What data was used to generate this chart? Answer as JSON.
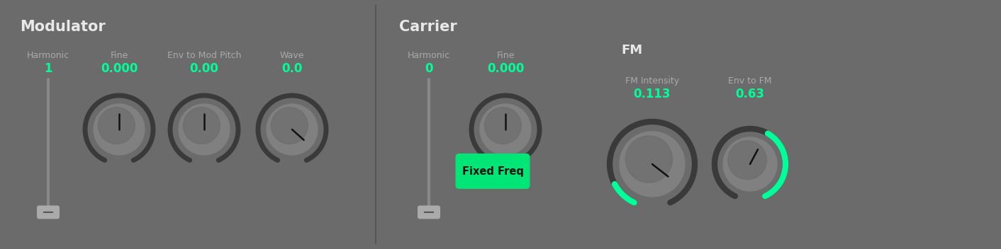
{
  "bg_color": "#6b6b6b",
  "text_color_white": "#e8e8e8",
  "text_color_green": "#00ff99",
  "text_color_label": "#aaaaaa",
  "knob_ring_color": "#3a3a3a",
  "knob_face_dark": "#808080",
  "knob_face_light": "#686868",
  "divider_color": "#555555",
  "green_button_color": "#00e676",
  "green_button_text": "#111111",
  "slider_track_color": "#888888",
  "slider_thumb_color": "#aaaaaa",
  "needle_color": "#111111",
  "green_arc_color": "#00ff99",
  "modulator_title": "Modulator",
  "carrier_title": "Carrier",
  "fm_title": "FM",
  "mod_harmonic_label": "Harmonic",
  "mod_harmonic_value": "1",
  "mod_fine_label": "Fine",
  "mod_fine_value": "0.000",
  "mod_env_label": "Env to Mod Pitch",
  "mod_env_value": "0.00",
  "mod_wave_label": "Wave",
  "mod_wave_value": "0.0",
  "car_harmonic_label": "Harmonic",
  "car_harmonic_value": "0",
  "car_fine_label": "Fine",
  "car_fine_value": "0.000",
  "fixed_freq_label": "Fixed Freq",
  "fm_intensity_label": "FM Intensity",
  "fm_intensity_value": "0.113",
  "fm_env_label": "Env to FM",
  "fm_env_value": "0.63"
}
